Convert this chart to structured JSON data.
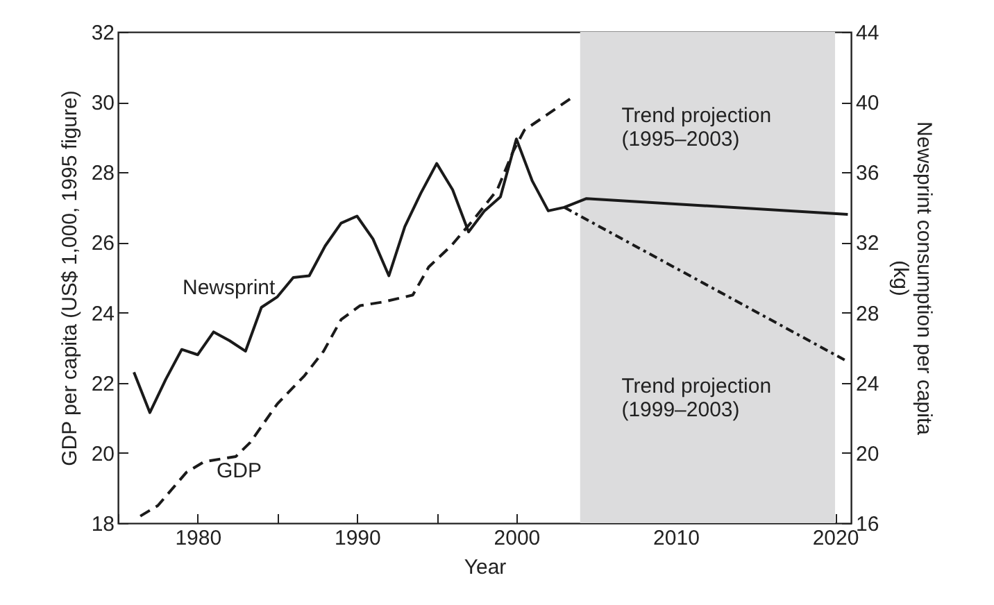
{
  "chart_data": {
    "type": "line",
    "xlabel": "Year",
    "ylabel": "GDP per capita (US$ 1,000, 1995 figure)",
    "y2label": "Newsprint consumption per capita\n(kg)",
    "xlim": [
      1975,
      2021
    ],
    "xticks": [
      {
        "value": 1975,
        "label": null
      },
      1980,
      {
        "value": 1985,
        "label": null
      },
      1990,
      {
        "value": 1995,
        "label": null
      },
      2000,
      {
        "value": 2005,
        "label": null
      },
      2010,
      {
        "value": 2015,
        "label": null
      },
      2020
    ],
    "ylim": [
      18,
      32
    ],
    "yticks": [
      18,
      20,
      22,
      24,
      26,
      28,
      30,
      32
    ],
    "y2lim": [
      16,
      44
    ],
    "y2ticks": [
      16,
      20,
      24,
      28,
      32,
      36,
      40,
      44
    ],
    "grid": false,
    "series": [
      {
        "name": "GDP",
        "color": "#1a1a1a",
        "line_style": "dashed",
        "x": [
          1976.4,
          1977.5,
          1979.3,
          1980.4,
          1982.4,
          1983.3,
          1985,
          1986.7,
          1987.9,
          1989,
          1990.2,
          1991.6,
          1993.5,
          1994.5,
          1995.9,
          1997.4,
          1998.8,
          1999.8,
          2000.5,
          2003.4
        ],
        "values": [
          18.2,
          18.5,
          19.45,
          19.75,
          19.9,
          20.3,
          21.4,
          22.2,
          22.9,
          23.8,
          24.2,
          24.3,
          24.5,
          25.3,
          25.9,
          26.7,
          27.5,
          28.6,
          29.2,
          30.1
        ]
      },
      {
        "name": "Newsprint",
        "color": "#1a1a1a",
        "line_style": "solid",
        "axis": "y2",
        "x": [
          1976,
          1977,
          1978,
          1979,
          1980,
          1981,
          1982,
          1983,
          1984,
          1985,
          1986,
          1987,
          1988,
          1989,
          1990,
          1991,
          1992,
          1993,
          1994,
          1995,
          1996,
          1997,
          1998,
          1999,
          2000,
          2001,
          2002,
          2003,
          2004.4,
          2020.8
        ],
        "values": [
          24.6,
          22.3,
          24.2,
          25.9,
          25.6,
          26.9,
          26.4,
          25.8,
          28.3,
          28.9,
          30.0,
          30.1,
          31.8,
          33.1,
          33.5,
          32.2,
          30.1,
          32.9,
          34.8,
          36.5,
          35.0,
          32.6,
          33.8,
          34.6,
          37.9,
          35.5,
          33.8,
          34.0,
          34.5,
          33.6
        ]
      },
      {
        "color": "#1a1a1a",
        "line_style": "dotted",
        "axis": "y2",
        "x": [
          2003,
          2020.8
        ],
        "values": [
          34.0,
          25.2
        ]
      }
    ],
    "bands": [
      {
        "axis": "x",
        "from": 2004,
        "to": 2020,
        "color": "#dcdcdd"
      }
    ],
    "annotations": [
      "Trend projection\n(1995–2003)",
      "Trend projection\n(1999–2003)"
    ]
  }
}
